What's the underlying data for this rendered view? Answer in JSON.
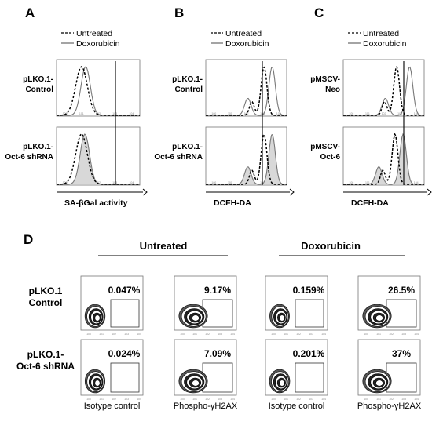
{
  "chart_data": [
    {
      "type": "histogram",
      "panel": "A",
      "legend": [
        "Untreated",
        "Doxorubicin"
      ],
      "xlabel": "SA-βGal activity",
      "rows": [
        {
          "label": [
            "pLKO.1-",
            "Control"
          ],
          "untreated_peak_decade": 1.5,
          "doxorubicin_peak_decade": 1.75
        },
        {
          "label": [
            "pLKO.1-",
            "Oct-6 shRNA"
          ],
          "untreated_peak_decade": 1.5,
          "doxorubicin_peak_decade": 1.7
        }
      ]
    },
    {
      "type": "histogram",
      "panel": "B",
      "legend": [
        "Untreated",
        "Doxorubicin"
      ],
      "xlabel": "DCFH-DA",
      "rows": [
        {
          "label": [
            "pLKO.1-",
            "Control"
          ],
          "untreated_peak_decade": 3.6,
          "doxorubicin_peak_decade": 4.1
        },
        {
          "label": [
            "pLKO.1-",
            "Oct-6 shRNA"
          ],
          "untreated_peak_decade": 3.6,
          "doxorubicin_peak_decade": 4.1
        }
      ]
    },
    {
      "type": "histogram",
      "panel": "C",
      "legend": [
        "Untreated",
        "Doxorubicin"
      ],
      "xlabel": "DCFH-DA",
      "rows": [
        {
          "label": [
            "pMSCV-",
            "Neo"
          ],
          "untreated_peak_decade": 3.3,
          "doxorubicin_peak_decade": 4.1
        },
        {
          "label": [
            "pMSCV-",
            "Oct-6"
          ],
          "untreated_peak_decade": 3.2,
          "doxorubicin_peak_decade": 3.7
        }
      ]
    },
    {
      "type": "contour",
      "panel": "D",
      "groups": [
        "Untreated",
        "Doxorubicin"
      ],
      "columns": [
        "Isotype control",
        "Phospho-γH2AX",
        "Isotype control",
        "Phospho-γH2AX"
      ],
      "rows": [
        {
          "label": [
            "pLKO.1",
            "Control"
          ],
          "percent": [
            "0.047%",
            "9.17%",
            "0.159%",
            "26.5%"
          ]
        },
        {
          "label": [
            "pLKO.1-",
            "Oct-6 shRNA"
          ],
          "percent": [
            "0.024%",
            "7.09%",
            "0.201%",
            "37%"
          ]
        }
      ]
    }
  ]
}
